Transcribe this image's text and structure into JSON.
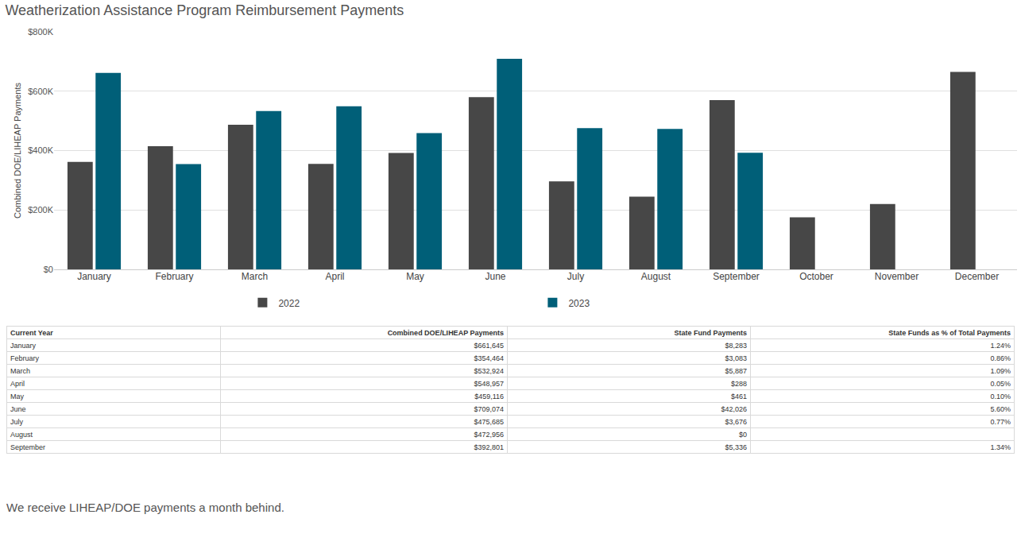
{
  "chart_data": {
    "type": "bar",
    "title": "Weatherization Assistance Program Reimbursement Payments",
    "y_label": "Combined DOE/LIHEAP Payments",
    "categories": [
      "January",
      "February",
      "March",
      "April",
      "May",
      "June",
      "July",
      "August",
      "September",
      "October",
      "November",
      "December"
    ],
    "series": [
      {
        "name": "2022",
        "color": "#474747",
        "values": [
          362000,
          415000,
          487000,
          355000,
          392000,
          580000,
          296000,
          245000,
          570000,
          175000,
          220000,
          665000
        ]
      },
      {
        "name": "2023",
        "color": "#005f78",
        "values": [
          661645,
          354464,
          532924,
          548957,
          459116,
          709074,
          475685,
          472956,
          392801,
          null,
          null,
          null
        ]
      }
    ],
    "ylim": [
      0,
      800000
    ],
    "yticks": [
      {
        "value": 0,
        "label": "$0"
      },
      {
        "value": 200000,
        "label": "$200K"
      },
      {
        "value": 400000,
        "label": "$400K"
      },
      {
        "value": 600000,
        "label": "$600K"
      },
      {
        "value": 800000,
        "label": "$800K"
      }
    ],
    "grid": true,
    "legend": "bottom"
  },
  "table": {
    "columns": [
      "Current Year",
      "Combined DOE/LIHEAP Payments",
      "State Fund Payments",
      "State Funds as % of Total Payments"
    ],
    "rows": [
      [
        "January",
        "$661,645",
        "$8,283",
        "1.24%"
      ],
      [
        "February",
        "$354,464",
        "$3,083",
        "0.86%"
      ],
      [
        "March",
        "$532,924",
        "$5,887",
        "1.09%"
      ],
      [
        "April",
        "$548,957",
        "$288",
        "0.05%"
      ],
      [
        "May",
        "$459,116",
        "$461",
        "0.10%"
      ],
      [
        "June",
        "$709,074",
        "$42,026",
        "5.60%"
      ],
      [
        "July",
        "$475,685",
        "$3,676",
        "0.77%"
      ],
      [
        "August",
        "$472,956",
        "$0",
        null
      ],
      [
        "September",
        "$392,801",
        "$5,336",
        "1.34%"
      ]
    ]
  },
  "note": "We receive LIHEAP/DOE payments a month behind."
}
